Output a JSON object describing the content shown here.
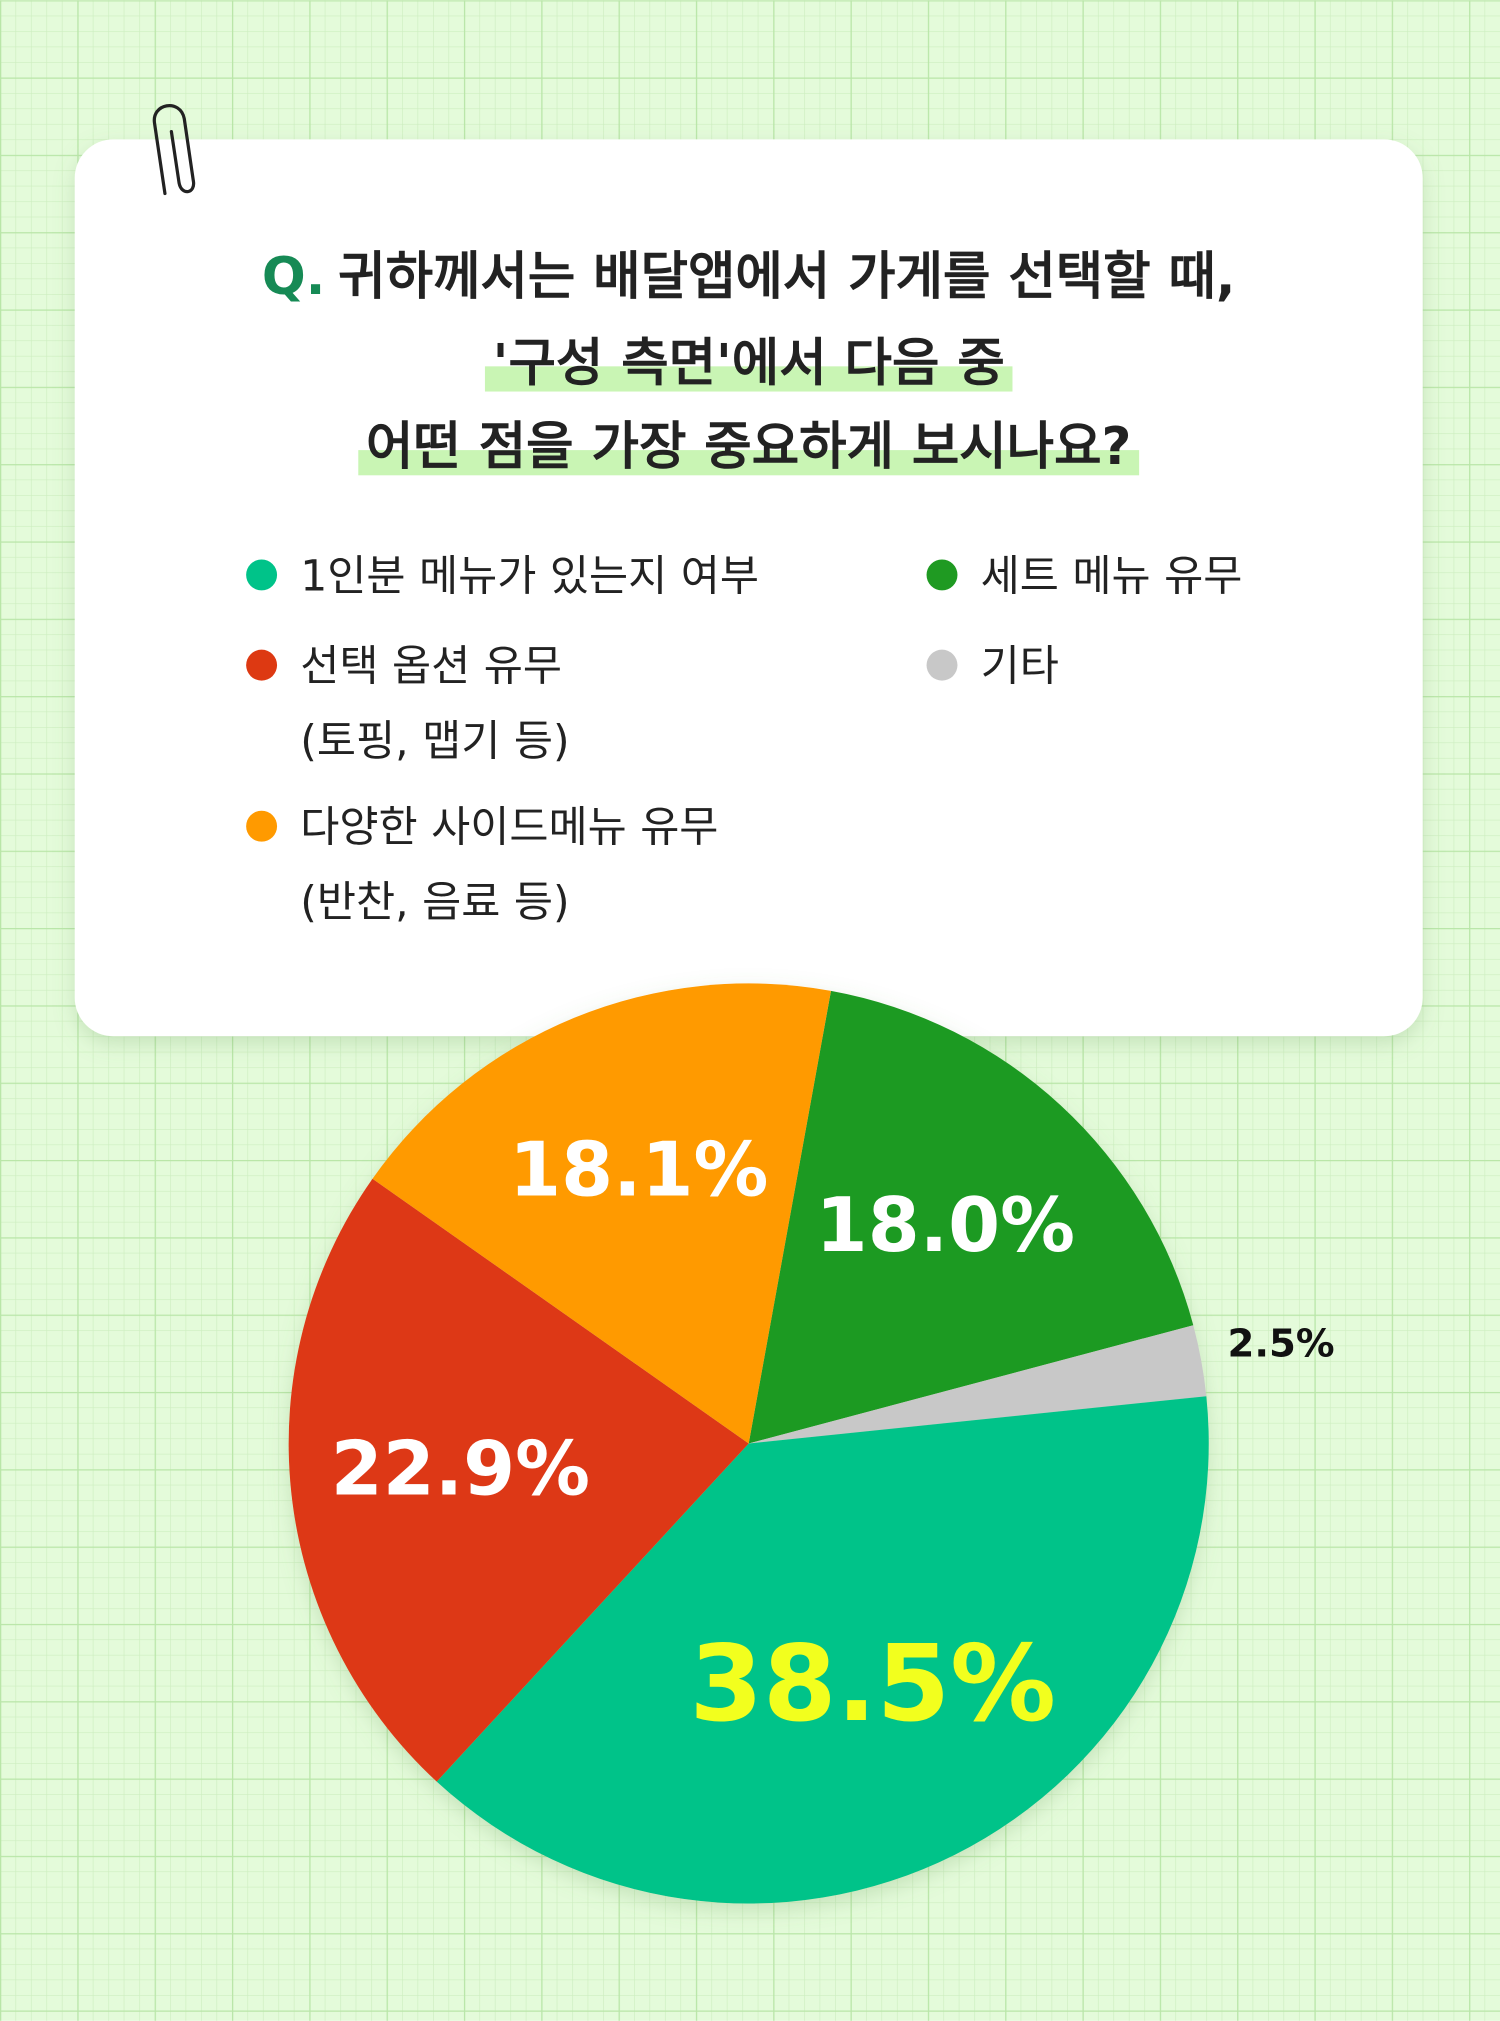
{
  "chart_data": {
    "type": "pie",
    "title_prefix": "Q.",
    "title_lines": [
      "귀하께서는 배달앱에서 가게를 선택할 때,",
      "'구성 측면'에서 다음 중",
      "어떤 점을 가장 중요하게 보시나요?"
    ],
    "categories": [
      "1인분 메뉴가 있는지 여부",
      "세트 메뉴 유무",
      "선택 옵션 유무\n(토핑, 맵기 등)",
      "기타",
      "다양한 사이드메뉴 유무\n(반찬, 음료 등)"
    ],
    "values": [
      38.5,
      18.0,
      22.9,
      2.5,
      18.1
    ],
    "value_labels": [
      "38.5%",
      "18.0%",
      "22.9%",
      "2.5%",
      "18.1%"
    ],
    "colors": [
      "#00c389",
      "#1f9a22",
      "#dd3912",
      "#c8c8c8",
      "#ff9a00"
    ],
    "value_label_colors": [
      "#f2ff1e",
      "#ffffff",
      "#ffffff",
      "#111111",
      "#ffffff"
    ]
  }
}
